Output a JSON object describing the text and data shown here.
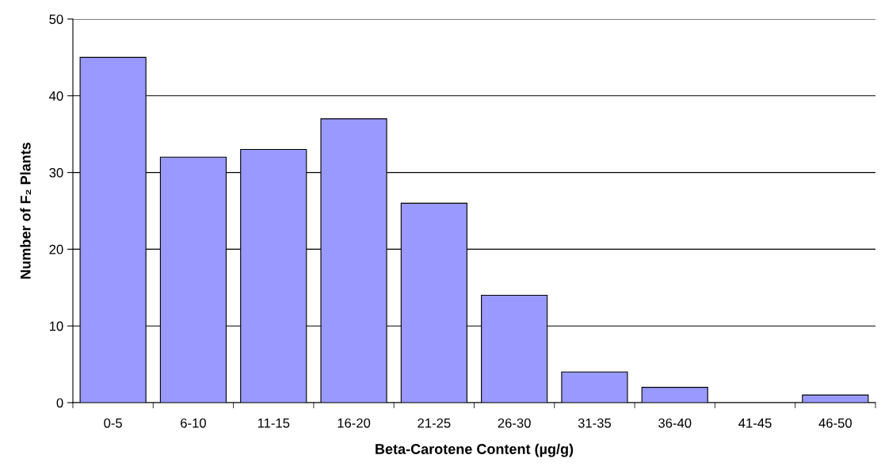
{
  "chart_data": {
    "type": "bar",
    "categories": [
      "0-5",
      "6-10",
      "11-15",
      "16-20",
      "21-25",
      "26-30",
      "31-35",
      "36-40",
      "41-45",
      "46-50"
    ],
    "values": [
      45,
      32,
      33,
      37,
      26,
      14,
      4,
      2,
      0,
      1
    ],
    "color": "#9999ff",
    "xlabel": "Beta-Carotene Content (µg/g)",
    "ylabel": "Number of F₂ Plants",
    "ylim": [
      0,
      50
    ],
    "yticks": [
      0,
      10,
      20,
      30,
      40,
      50
    ],
    "grid": "y",
    "legend": false
  }
}
